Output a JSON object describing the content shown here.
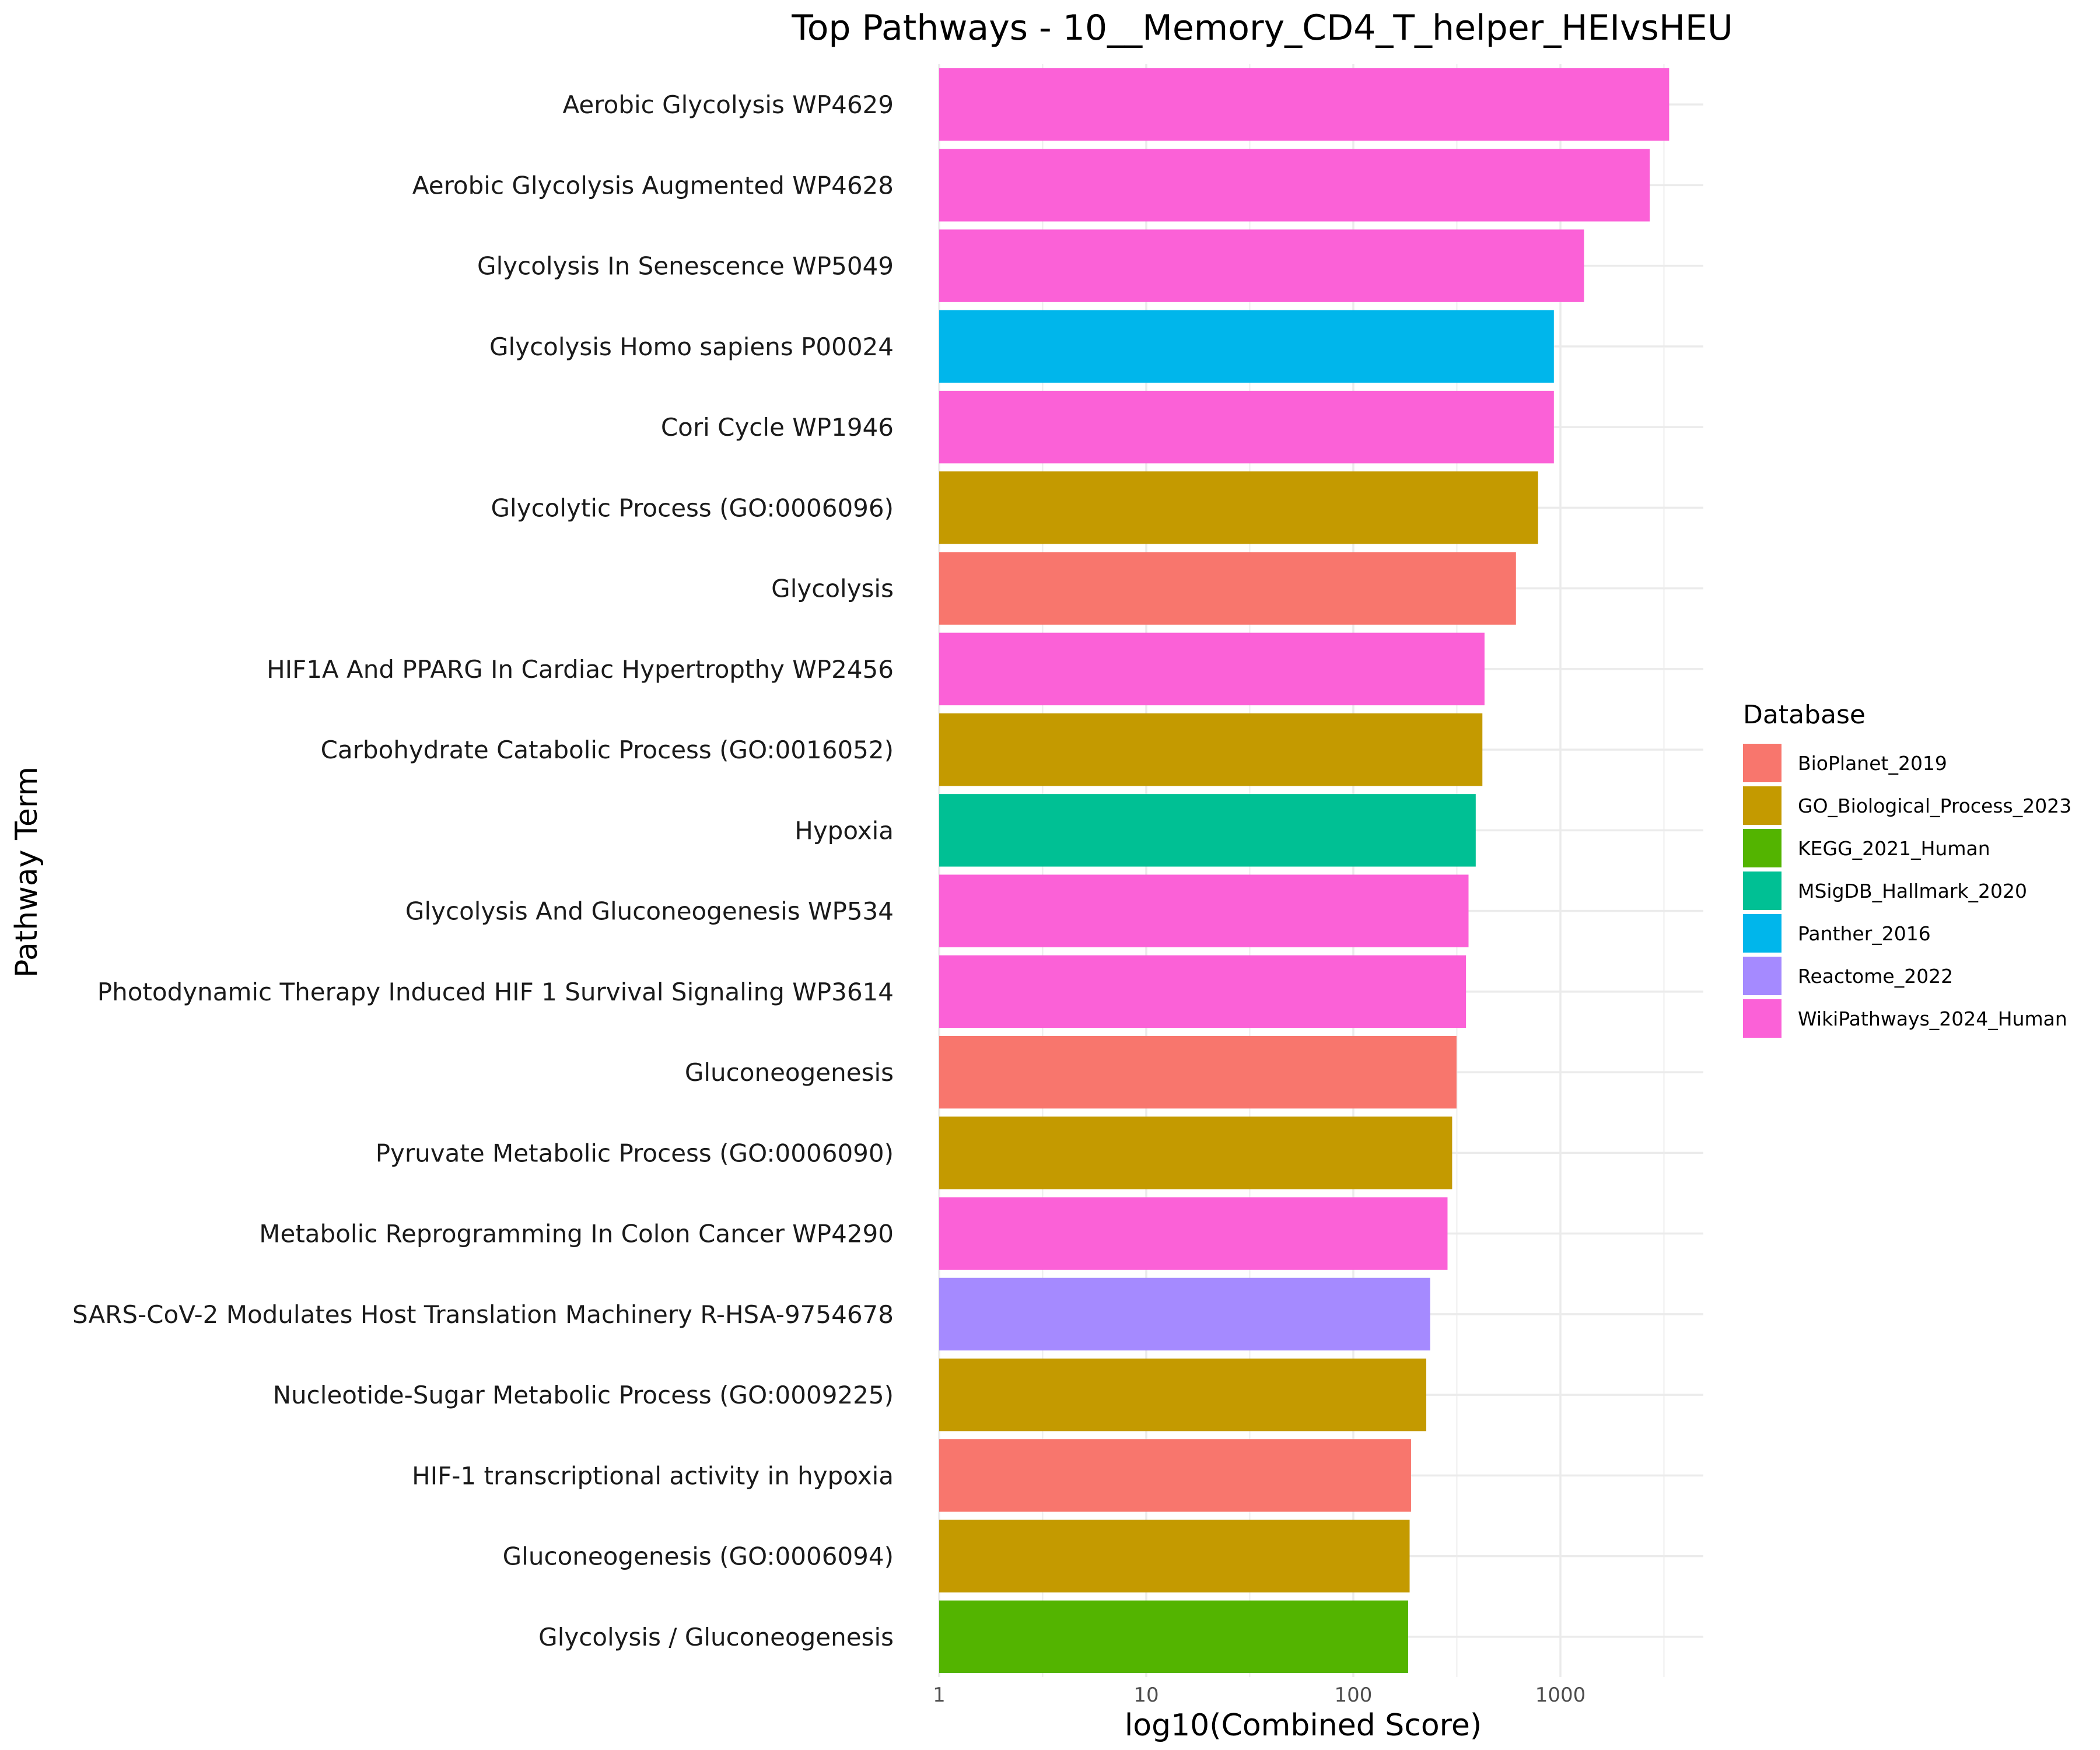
{
  "chart_data": {
    "type": "bar",
    "orientation": "horizontal",
    "title": "Top Pathways - 10__Memory_CD4_T_helper_HEIvsHEU",
    "xlabel": "log10(Combined Score)",
    "ylabel": "Pathway Term",
    "x_scale": "log10",
    "xlim": [
      1,
      5000
    ],
    "x_ticks": [
      "1",
      "10",
      "100",
      "1000"
    ],
    "grid": true,
    "legend_title": "Database",
    "legend_position": "right",
    "databases": [
      {
        "name": "BioPlanet_2019",
        "color": "#F8766D"
      },
      {
        "name": "GO_Biological_Process_2023",
        "color": "#C49A00"
      },
      {
        "name": "KEGG_2021_Human",
        "color": "#53B400"
      },
      {
        "name": "MSigDB_Hallmark_2020",
        "color": "#00C094"
      },
      {
        "name": "Panther_2016",
        "color": "#00B6EB"
      },
      {
        "name": "Reactome_2022",
        "color": "#A58AFF"
      },
      {
        "name": "WikiPathways_2024_Human",
        "color": "#FB61D7"
      }
    ],
    "bars": [
      {
        "term": "Aerobic Glycolysis WP4629",
        "value": 3350,
        "database": "WikiPathways_2024_Human"
      },
      {
        "term": "Aerobic Glycolysis Augmented WP4628",
        "value": 2700,
        "database": "WikiPathways_2024_Human"
      },
      {
        "term": "Glycolysis In Senescence WP5049",
        "value": 1300,
        "database": "WikiPathways_2024_Human"
      },
      {
        "term": "Glycolysis Homo sapiens P00024",
        "value": 930,
        "database": "Panther_2016"
      },
      {
        "term": "Cori Cycle WP1946",
        "value": 930,
        "database": "WikiPathways_2024_Human"
      },
      {
        "term": "Glycolytic Process (GO:0006096)",
        "value": 780,
        "database": "GO_Biological_Process_2023"
      },
      {
        "term": "Glycolysis",
        "value": 610,
        "database": "BioPlanet_2019"
      },
      {
        "term": "HIF1A And PPARG In Cardiac Hypertropthy WP2456",
        "value": 430,
        "database": "WikiPathways_2024_Human"
      },
      {
        "term": "Carbohydrate Catabolic Process (GO:0016052)",
        "value": 420,
        "database": "GO_Biological_Process_2023"
      },
      {
        "term": "Hypoxia",
        "value": 390,
        "database": "MSigDB_Hallmark_2020"
      },
      {
        "term": "Glycolysis And Gluconeogenesis WP534",
        "value": 360,
        "database": "WikiPathways_2024_Human"
      },
      {
        "term": "Photodynamic Therapy Induced HIF 1 Survival Signaling WP3614",
        "value": 350,
        "database": "WikiPathways_2024_Human"
      },
      {
        "term": "Gluconeogenesis",
        "value": 315,
        "database": "BioPlanet_2019"
      },
      {
        "term": "Pyruvate Metabolic Process (GO:0006090)",
        "value": 300,
        "database": "GO_Biological_Process_2023"
      },
      {
        "term": "Metabolic Reprogramming In Colon Cancer WP4290",
        "value": 285,
        "database": "WikiPathways_2024_Human"
      },
      {
        "term": "SARS-CoV-2 Modulates Host Translation Machinery R-HSA-9754678",
        "value": 235,
        "database": "Reactome_2022"
      },
      {
        "term": "Nucleotide-Sugar Metabolic Process (GO:0009225)",
        "value": 225,
        "database": "GO_Biological_Process_2023"
      },
      {
        "term": "HIF-1 transcriptional activity in hypoxia",
        "value": 190,
        "database": "BioPlanet_2019"
      },
      {
        "term": "Gluconeogenesis (GO:0006094)",
        "value": 187,
        "database": "GO_Biological_Process_2023"
      },
      {
        "term": "Glycolysis / Gluconeogenesis",
        "value": 184,
        "database": "KEGG_2021_Human"
      }
    ]
  }
}
